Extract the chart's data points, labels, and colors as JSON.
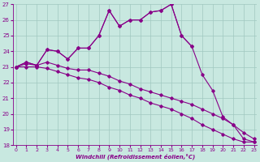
{
  "xlabel": "Windchill (Refroidissement éolien,°C)",
  "background_color": "#c8e8e0",
  "line_color": "#880088",
  "series_upper": [
    23.0,
    23.3,
    23.1,
    24.1,
    24.0,
    23.5,
    24.2,
    24.2,
    25.0,
    26.6,
    25.6,
    26.0,
    26.0,
    26.5,
    26.6,
    27.0,
    25.0,
    24.3,
    null,
    null,
    null,
    null,
    null,
    null
  ],
  "series_main": [
    23.0,
    23.3,
    23.1,
    24.1,
    24.0,
    23.5,
    24.2,
    24.2,
    25.0,
    26.6,
    25.6,
    26.0,
    26.0,
    26.5,
    26.6,
    27.0,
    25.0,
    24.3,
    22.5,
    21.5,
    19.8,
    19.3,
    18.4,
    18.2
  ],
  "series_mid1": [
    23.0,
    23.2,
    23.1,
    23.3,
    23.1,
    22.9,
    22.8,
    22.8,
    22.6,
    22.4,
    22.1,
    21.9,
    21.6,
    21.4,
    21.2,
    21.0,
    20.8,
    20.6,
    20.3,
    20.0,
    19.7,
    19.3,
    18.8,
    18.4
  ],
  "series_low": [
    23.0,
    23.0,
    23.0,
    22.9,
    22.7,
    22.5,
    22.3,
    22.2,
    22.0,
    21.7,
    21.5,
    21.2,
    21.0,
    20.7,
    20.5,
    20.3,
    20.0,
    19.7,
    19.3,
    19.0,
    18.7,
    18.4,
    18.2,
    18.2
  ],
  "ylim": [
    18,
    27
  ],
  "yticks": [
    18,
    19,
    20,
    21,
    22,
    23,
    24,
    25,
    26,
    27
  ],
  "xticks": [
    0,
    1,
    2,
    3,
    4,
    5,
    6,
    7,
    8,
    9,
    10,
    11,
    12,
    13,
    14,
    15,
    16,
    17,
    18,
    19,
    20,
    21,
    22,
    23
  ],
  "xlim": [
    -0.3,
    23.3
  ]
}
